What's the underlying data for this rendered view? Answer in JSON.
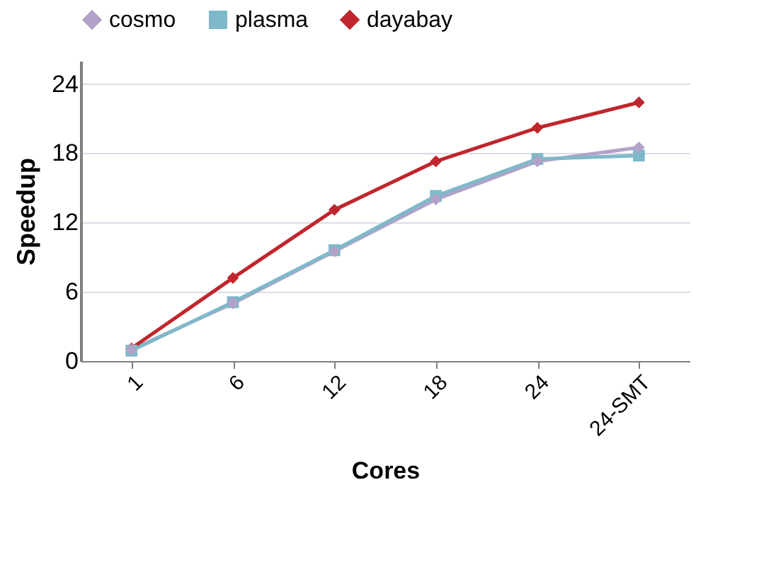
{
  "chart_data": {
    "type": "line",
    "xlabel": "Cores",
    "ylabel": "Speedup",
    "categories": [
      "1",
      "6",
      "12",
      "18",
      "24",
      "24-SMT"
    ],
    "series": [
      {
        "name": "cosmo",
        "color": "#b3a2c7",
        "marker": "diamond",
        "values": [
          1,
          5,
          9.5,
          14,
          17.3,
          18.5
        ]
      },
      {
        "name": "plasma",
        "color": "#7fb8c9",
        "marker": "square",
        "values": [
          0.9,
          5.1,
          9.6,
          14.3,
          17.5,
          17.8
        ]
      },
      {
        "name": "dayabay",
        "color": "#c0262d",
        "marker": "diamond",
        "values": [
          1.1,
          7.2,
          13.1,
          17.3,
          20.2,
          22.4
        ]
      }
    ],
    "ylim": [
      0,
      26
    ],
    "yticks": [
      0,
      6,
      12,
      18,
      24
    ],
    "grid": "y",
    "legend": "top",
    "line_style": "solid"
  }
}
